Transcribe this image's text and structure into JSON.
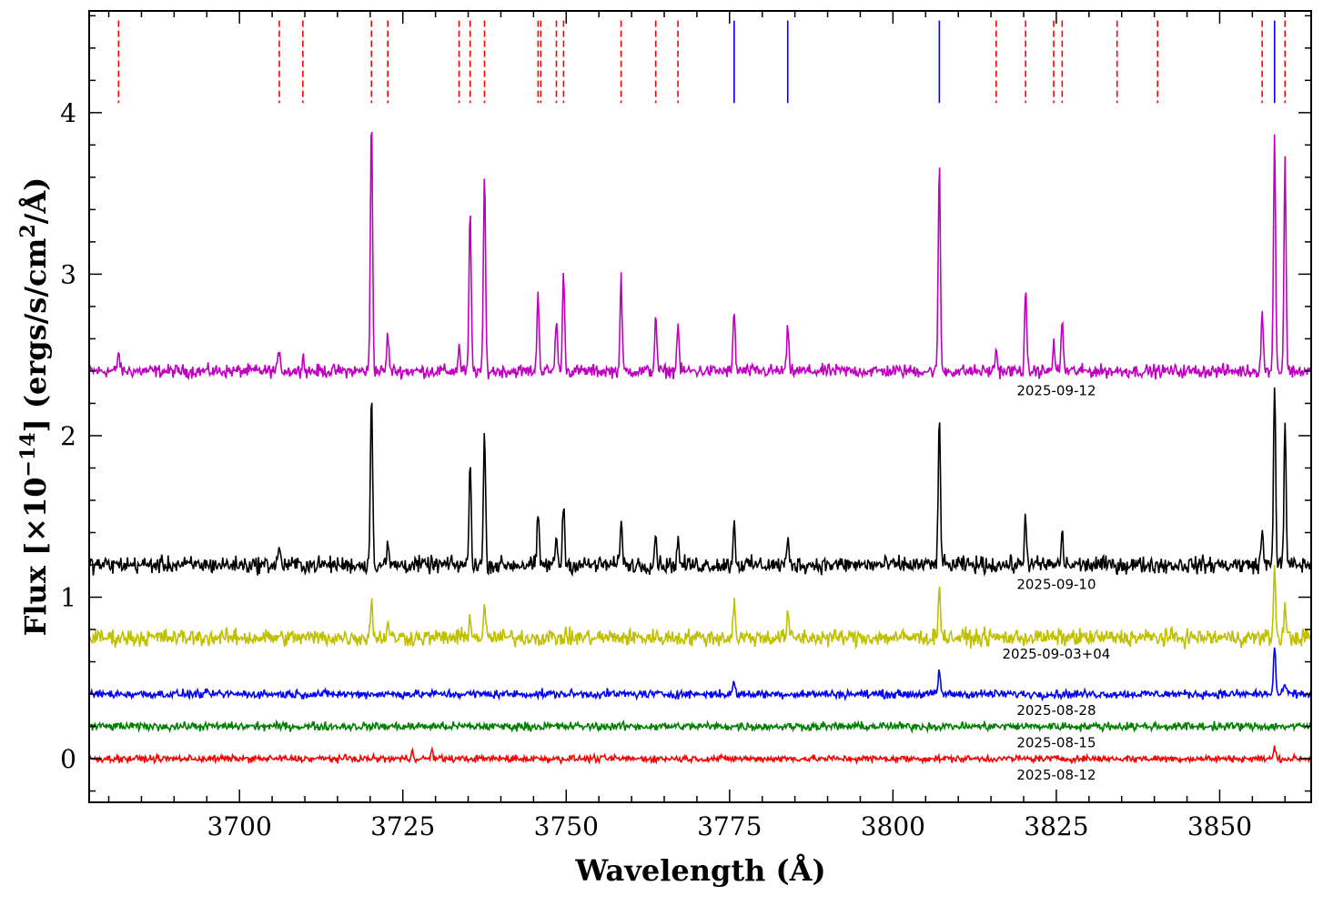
{
  "chart_data": {
    "type": "line",
    "xlabel": "Wavelength (Å)",
    "ylabel_main": "Flux [×10",
    "ylabel_exp": "−14",
    "ylabel_tail": "] (ergs/s/cm",
    "ylabel_exp2": "2",
    "ylabel_end": "/Å)",
    "xlim": [
      3677,
      3864
    ],
    "ylim": [
      -0.27,
      4.63
    ],
    "x_ticks": [
      3700,
      3725,
      3750,
      3775,
      3800,
      3825,
      3850
    ],
    "x_tick_labels": [
      "3700",
      "3725",
      "3750",
      "3775",
      "3800",
      "3825",
      "3850"
    ],
    "x_minor_step": 5,
    "y_ticks": [
      0,
      1,
      2,
      3,
      4
    ],
    "y_tick_labels": [
      "0",
      "1",
      "2",
      "3",
      "4"
    ],
    "y_minor_step": 0.2,
    "grid": false,
    "legend": "none",
    "marker_lines": {
      "red_dashed": [
        3681.5,
        3706.1,
        3709.7,
        3720.2,
        3722.7,
        3733.6,
        3735.3,
        3737.5,
        3745.7,
        3746.1,
        3748.5,
        3749.6,
        3758.4,
        3763.7,
        3767.1,
        3815.8,
        3820.3,
        3824.6,
        3825.9,
        3834.3,
        3840.5,
        3856.5,
        3860.0
      ],
      "blue_solid": [
        3775.7,
        3783.9,
        3807.1,
        3858.4
      ],
      "top": 4.57,
      "red_bottom": 4.06,
      "blue_bottom": 4.06,
      "red_color": "#ff0000",
      "blue_color": "#0000ff"
    },
    "series": [
      {
        "label": "2025-09-12",
        "color": "#c000c0",
        "baseline": 2.4,
        "noise": 0.035,
        "lines": [
          [
            3681.5,
            2.52
          ],
          [
            3706.1,
            2.55
          ],
          [
            3709.7,
            2.5
          ],
          [
            3720.2,
            4.0
          ],
          [
            3722.7,
            2.63
          ],
          [
            3733.6,
            2.55
          ],
          [
            3735.3,
            3.4
          ],
          [
            3737.5,
            3.63
          ],
          [
            3745.7,
            2.9
          ],
          [
            3748.5,
            2.73
          ],
          [
            3749.6,
            3.02
          ],
          [
            3758.4,
            2.97
          ],
          [
            3763.7,
            2.76
          ],
          [
            3767.1,
            2.7
          ],
          [
            3775.7,
            2.77
          ],
          [
            3783.9,
            2.66
          ],
          [
            3807.1,
            3.69
          ],
          [
            3815.8,
            2.54
          ],
          [
            3820.3,
            2.89
          ],
          [
            3824.6,
            2.57
          ],
          [
            3825.9,
            2.72
          ],
          [
            3856.5,
            2.78
          ],
          [
            3858.4,
            3.85
          ],
          [
            3860.0,
            3.73
          ]
        ],
        "label_x": 3825,
        "label_y": 2.25
      },
      {
        "label": "2025-09-10",
        "color": "#000000",
        "baseline": 1.2,
        "noise": 0.045,
        "lines": [
          [
            3706.1,
            1.32
          ],
          [
            3720.2,
            2.3
          ],
          [
            3722.7,
            1.32
          ],
          [
            3735.3,
            1.83
          ],
          [
            3737.5,
            2.02
          ],
          [
            3745.7,
            1.5
          ],
          [
            3748.5,
            1.38
          ],
          [
            3749.6,
            1.58
          ],
          [
            3758.4,
            1.51
          ],
          [
            3763.7,
            1.4
          ],
          [
            3767.1,
            1.35
          ],
          [
            3775.7,
            1.47
          ],
          [
            3783.9,
            1.35
          ],
          [
            3807.1,
            2.15
          ],
          [
            3820.3,
            1.52
          ],
          [
            3825.9,
            1.4
          ],
          [
            3856.5,
            1.42
          ],
          [
            3858.4,
            2.35
          ],
          [
            3860.0,
            2.08
          ]
        ],
        "label_x": 3825,
        "label_y": 1.05
      },
      {
        "label": "2025-09-03+04",
        "color": "#c0c000",
        "baseline": 0.75,
        "noise": 0.045,
        "lines": [
          [
            3720.2,
            1.0
          ],
          [
            3722.7,
            0.85
          ],
          [
            3735.3,
            0.9
          ],
          [
            3737.5,
            0.94
          ],
          [
            3775.7,
            0.97
          ],
          [
            3783.9,
            0.9
          ],
          [
            3807.1,
            1.1
          ],
          [
            3858.4,
            1.18
          ],
          [
            3860.0,
            0.95
          ]
        ],
        "label_x": 3825,
        "label_y": 0.62
      },
      {
        "label": "2025-08-28",
        "color": "#0000ff",
        "baseline": 0.4,
        "noise": 0.022,
        "lines": [
          [
            3775.7,
            0.48
          ],
          [
            3807.1,
            0.55
          ],
          [
            3858.4,
            0.7
          ],
          [
            3860.0,
            0.47
          ]
        ],
        "label_x": 3825,
        "label_y": 0.27
      },
      {
        "label": "2025-08-15",
        "color": "#008000",
        "baseline": 0.2,
        "noise": 0.022,
        "lines": [],
        "label_x": 3825,
        "label_y": 0.07
      },
      {
        "label": "2025-08-12",
        "color": "#ff0000",
        "baseline": 0.0,
        "noise": 0.018,
        "lines": [
          [
            3726.5,
            0.05
          ],
          [
            3729.5,
            0.05
          ],
          [
            3858.4,
            0.07
          ]
        ],
        "label_x": 3825,
        "label_y": -0.13
      }
    ]
  }
}
